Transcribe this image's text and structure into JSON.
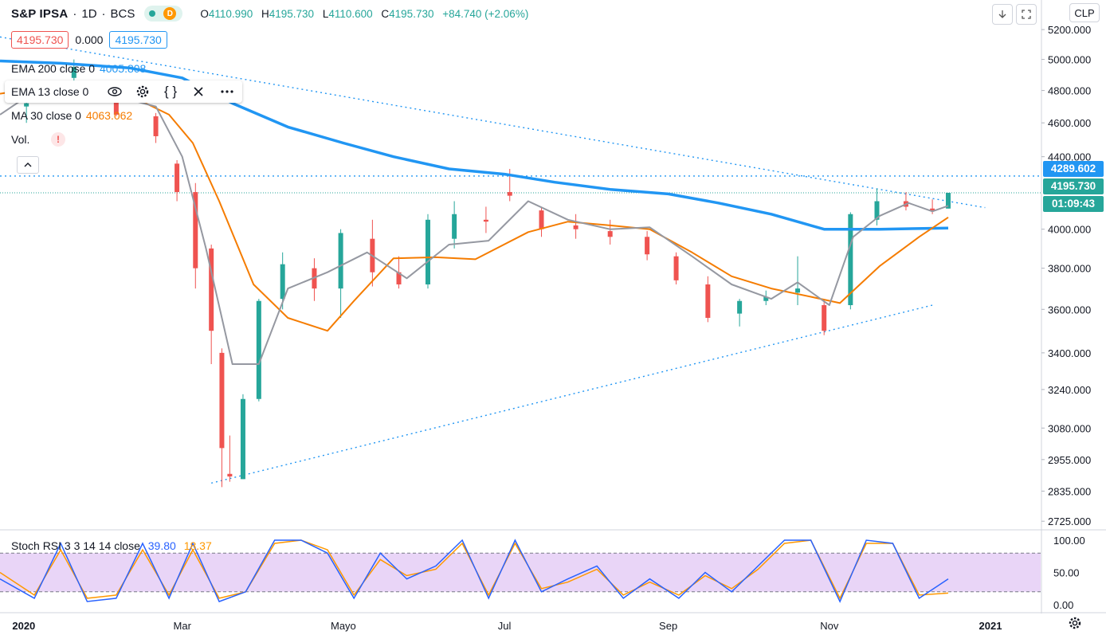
{
  "header": {
    "symbol": "S&P IPSA",
    "interval": "1D",
    "exchange": "BCS",
    "d_badge": "D",
    "ohlc": {
      "o_label": "O",
      "o": "4110.990",
      "h_label": "H",
      "h": "4195.730",
      "l_label": "L",
      "l": "4110.600",
      "c_label": "C",
      "c": "4195.730",
      "change": "+84.740 (+2.06%)"
    },
    "colors": {
      "up": "#26a69a",
      "down": "#ef5350"
    }
  },
  "price_boxes": {
    "bid": "4195.730",
    "spread": "0.000",
    "ask": "4195.730"
  },
  "indicators": {
    "ema200": {
      "label": "EMA 200 close 0",
      "value": "4005.808",
      "color": "#2196f3"
    },
    "ema13": {
      "label": "EMA 13 close 0",
      "color": "#9598a1"
    },
    "ma30": {
      "label": "MA 30 close 0",
      "value": "4063.062",
      "color": "#f57c00"
    },
    "vol": {
      "label": "Vol.",
      "warning": "!"
    }
  },
  "toolbar": {
    "eye_icon": "eye-icon",
    "settings_icon": "gear-icon",
    "code_icon": "braces-icon",
    "close_icon": "close-icon",
    "more_icon": "more-icon"
  },
  "top_right": {
    "currency": "CLP",
    "down_icon": "arrow-down-icon",
    "fullscreen_icon": "fullscreen-icon"
  },
  "price_tags": {
    "resistance": {
      "value": "4289.602",
      "color": "#2196f3"
    },
    "last": {
      "value": "4195.730",
      "color": "#26a69a"
    },
    "countdown": {
      "value": "01:09:43",
      "color": "#26a69a"
    }
  },
  "stoch_rsi": {
    "label": "Stoch RSI 3 3 14 14 close",
    "k": "39.80",
    "d": "18.37",
    "k_color": "#2962ff",
    "d_color": "#ff9800",
    "band_color": "#e1bee7",
    "levels": [
      "100.00",
      "50.00",
      "0.00"
    ]
  },
  "chart_data": {
    "type": "candlestick",
    "title": "",
    "y_axis_ticks": [
      "5200.000",
      "5000.000",
      "4800.000",
      "4600.000",
      "4400.000",
      "4000.000",
      "3800.000",
      "3600.000",
      "3400.000",
      "3240.000",
      "3080.000",
      "2955.000",
      "2835.000",
      "2725.000"
    ],
    "y_axis_scale": "log",
    "ylim": [
      2700,
      5250
    ],
    "x_axis_ticks": [
      "2020",
      "Mar",
      "Mayo",
      "Jul",
      "Sep",
      "Nov",
      "2021"
    ],
    "x_range": [
      "2019-12-23",
      "2021-01-20"
    ],
    "series": [
      {
        "name": "EMA 200 close 0",
        "color": "#2196f3",
        "x": [
          "2019-12-23",
          "2020-01-15",
          "2020-02-10",
          "2020-03-01",
          "2020-03-20",
          "2020-04-10",
          "2020-05-01",
          "2020-05-20",
          "2020-06-10",
          "2020-07-01",
          "2020-07-20",
          "2020-08-10",
          "2020-09-01",
          "2020-09-20",
          "2020-10-10",
          "2020-10-30",
          "2020-11-20",
          "2020-12-16"
        ],
        "values": [
          4990,
          4975,
          4945,
          4880,
          4720,
          4575,
          4480,
          4400,
          4330,
          4300,
          4255,
          4215,
          4190,
          4140,
          4080,
          4000,
          4000,
          4006
        ]
      },
      {
        "name": "MA 30 close 0",
        "color": "#f57c00",
        "x": [
          "2019-12-23",
          "2020-01-15",
          "2020-02-10",
          "2020-02-25",
          "2020-03-05",
          "2020-03-15",
          "2020-03-28",
          "2020-04-10",
          "2020-04-25",
          "2020-05-05",
          "2020-05-20",
          "2020-06-05",
          "2020-06-20",
          "2020-07-10",
          "2020-07-25",
          "2020-08-10",
          "2020-08-25",
          "2020-09-10",
          "2020-09-25",
          "2020-10-10",
          "2020-10-25",
          "2020-11-05",
          "2020-11-20",
          "2020-12-05",
          "2020-12-16"
        ],
        "values": [
          4780,
          4840,
          4770,
          4650,
          4480,
          4150,
          3720,
          3560,
          3500,
          3640,
          3850,
          3855,
          3845,
          3985,
          4040,
          4020,
          4000,
          3880,
          3760,
          3700,
          3660,
          3630,
          3810,
          3960,
          4063
        ]
      },
      {
        "name": "EMA 13 close 0",
        "color": "#9598a1",
        "x": [
          "2019-12-23",
          "2020-01-10",
          "2020-02-01",
          "2020-02-20",
          "2020-03-01",
          "2020-03-10",
          "2020-03-20",
          "2020-03-30",
          "2020-04-10",
          "2020-04-25",
          "2020-05-10",
          "2020-05-25",
          "2020-06-10",
          "2020-06-25",
          "2020-07-10",
          "2020-07-25",
          "2020-08-10",
          "2020-08-25",
          "2020-09-10",
          "2020-09-25",
          "2020-10-10",
          "2020-10-20",
          "2020-11-01",
          "2020-11-10",
          "2020-11-20",
          "2020-12-01",
          "2020-12-10",
          "2020-12-16"
        ],
        "values": [
          4650,
          4850,
          4780,
          4700,
          4400,
          3900,
          3350,
          3350,
          3700,
          3780,
          3880,
          3750,
          3920,
          3940,
          4150,
          4050,
          4000,
          4010,
          3860,
          3720,
          3650,
          3730,
          3620,
          3960,
          4070,
          4140,
          4095,
          4125
        ]
      }
    ],
    "candles": {
      "note": "daily candles approximated from visual",
      "x": [
        "2020-01-02",
        "2020-01-20",
        "2020-02-05",
        "2020-02-20",
        "2020-02-28",
        "2020-03-06",
        "2020-03-12",
        "2020-03-16",
        "2020-03-19",
        "2020-03-24",
        "2020-03-30",
        "2020-04-08",
        "2020-04-20",
        "2020-04-30",
        "2020-05-12",
        "2020-05-22",
        "2020-06-02",
        "2020-06-12",
        "2020-06-24",
        "2020-07-03",
        "2020-07-15",
        "2020-07-28",
        "2020-08-10",
        "2020-08-24",
        "2020-09-04",
        "2020-09-16",
        "2020-09-28",
        "2020-10-08",
        "2020-10-20",
        "2020-10-30",
        "2020-11-09",
        "2020-11-19",
        "2020-11-30",
        "2020-12-10",
        "2020-12-16"
      ],
      "open": [
        4700,
        4880,
        4800,
        4640,
        4360,
        4200,
        3900,
        3400,
        2900,
        2880,
        3200,
        3650,
        3800,
        3700,
        3950,
        3780,
        3720,
        3950,
        4050,
        4200,
        4100,
        4020,
        3990,
        3960,
        3860,
        3720,
        3580,
        3640,
        3680,
        3620,
        3620,
        4050,
        4150,
        4110,
        4110
      ],
      "high": [
        4750,
        5000,
        4820,
        4660,
        4380,
        4250,
        3920,
        3420,
        3050,
        3220,
        3650,
        3880,
        3850,
        4000,
        4050,
        3860,
        4080,
        4150,
        4120,
        4330,
        4120,
        4080,
        4050,
        3990,
        3880,
        3760,
        3650,
        3690,
        3860,
        3650,
        4090,
        4220,
        4200,
        4160,
        4196
      ],
      "low": [
        4600,
        4840,
        4640,
        4480,
        4150,
        3700,
        3350,
        2850,
        2870,
        2880,
        3190,
        3600,
        3640,
        3560,
        3710,
        3700,
        3700,
        3900,
        3980,
        4150,
        3960,
        3950,
        3920,
        3840,
        3720,
        3540,
        3520,
        3620,
        3620,
        3480,
        3600,
        4020,
        4100,
        4080,
        4110
      ],
      "close": [
        4720,
        4950,
        4650,
        4520,
        4200,
        3800,
        3500,
        3000,
        2890,
        3200,
        3640,
        3820,
        3700,
        3980,
        3780,
        3720,
        4050,
        4080,
        4040,
        4180,
        4000,
        4000,
        3960,
        3870,
        3740,
        3560,
        3640,
        3660,
        3700,
        3500,
        4080,
        4150,
        4120,
        4100,
        4196
      ]
    },
    "trend_lines": [
      {
        "name": "upper",
        "x": [
          "2019-12-23",
          "2020-12-30"
        ],
        "values": [
          5150,
          4115
        ]
      },
      {
        "name": "lower",
        "x": [
          "2020-03-12",
          "2020-12-10"
        ],
        "values": [
          2865,
          3620
        ]
      },
      {
        "name": "horizontal",
        "x": [
          "2019-12-23",
          "2021-01-20"
        ],
        "values": [
          4289.602,
          4289.602
        ]
      }
    ],
    "stoch": {
      "x": [
        "2019-12-23",
        "2020-01-05",
        "2020-01-15",
        "2020-01-25",
        "2020-02-05",
        "2020-02-15",
        "2020-02-25",
        "2020-03-05",
        "2020-03-15",
        "2020-03-25",
        "2020-04-05",
        "2020-04-15",
        "2020-04-25",
        "2020-05-05",
        "2020-05-15",
        "2020-05-25",
        "2020-06-05",
        "2020-06-15",
        "2020-06-25",
        "2020-07-05",
        "2020-07-15",
        "2020-07-25",
        "2020-08-05",
        "2020-08-15",
        "2020-08-25",
        "2020-09-05",
        "2020-09-15",
        "2020-09-25",
        "2020-10-05",
        "2020-10-15",
        "2020-10-25",
        "2020-11-05",
        "2020-11-15",
        "2020-11-25",
        "2020-12-05",
        "2020-12-16"
      ],
      "k": [
        40,
        10,
        95,
        5,
        10,
        95,
        10,
        95,
        5,
        20,
        100,
        100,
        80,
        10,
        80,
        40,
        60,
        100,
        10,
        100,
        20,
        40,
        60,
        10,
        40,
        10,
        50,
        20,
        60,
        100,
        100,
        5,
        100,
        95,
        10,
        40
      ],
      "d": [
        50,
        15,
        85,
        10,
        15,
        85,
        15,
        85,
        10,
        20,
        95,
        100,
        85,
        15,
        70,
        45,
        55,
        95,
        15,
        95,
        25,
        35,
        55,
        15,
        35,
        15,
        45,
        25,
        55,
        95,
        100,
        10,
        95,
        95,
        15,
        18
      ]
    }
  },
  "x_axis": {
    "settings_icon": "gear-icon"
  }
}
